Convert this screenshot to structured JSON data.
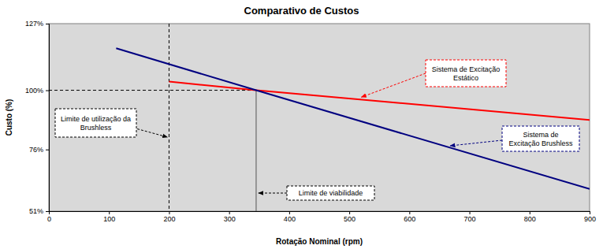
{
  "chart_data": {
    "type": "line",
    "title": "Comparativo de Custos",
    "x_label": "Rotação Nominal (rpm)",
    "y_label": "Custo (%)",
    "xlim": [
      0,
      900
    ],
    "xticks": [
      0,
      100,
      200,
      300,
      400,
      500,
      600,
      700,
      800,
      900
    ],
    "ylim": [
      51,
      127
    ],
    "yticks": [
      {
        "value": 51,
        "label": "51%"
      },
      {
        "value": 76,
        "label": "76%"
      },
      {
        "value": 100,
        "label": "100%"
      },
      {
        "value": 127,
        "label": "127%"
      }
    ],
    "grid": false,
    "series": [
      {
        "name": "Sistema de Excitação Estático",
        "color": "#ff0000",
        "x": [
          200,
          345,
          900
        ],
        "values": [
          103.5,
          100,
          88
        ]
      },
      {
        "name": "Sistema de Excitação Brushless",
        "color": "#000080",
        "x": [
          112,
          345,
          900
        ],
        "values": [
          117,
          100,
          60
        ]
      }
    ],
    "annotations": [
      {
        "text": "Limite de utilização da Brushless",
        "x": 200
      },
      {
        "text": "Limite de viabilidade",
        "x": 345,
        "y": 100
      }
    ]
  }
}
